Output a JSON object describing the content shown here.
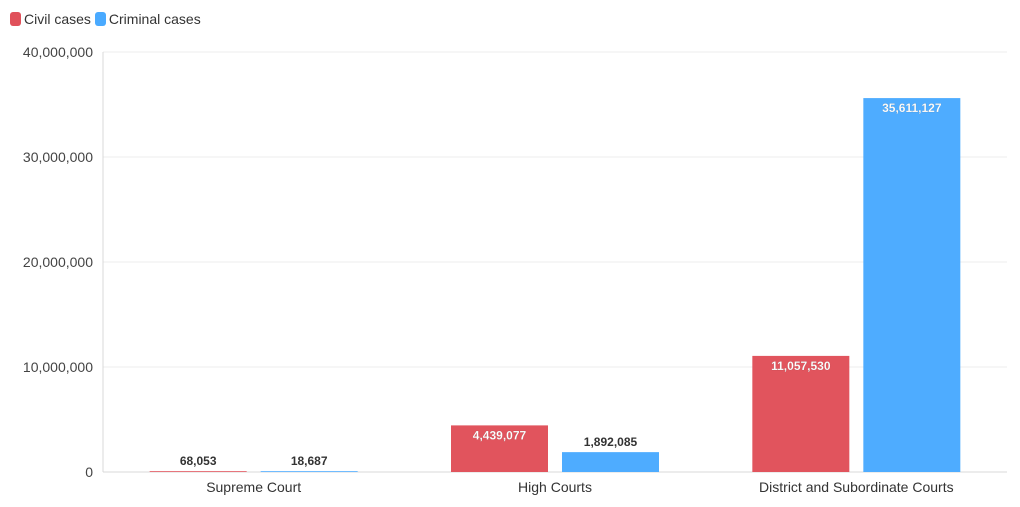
{
  "chart_data": {
    "type": "bar",
    "categories": [
      "Supreme Court",
      "High Courts",
      "District and Subordinate Courts"
    ],
    "series": [
      {
        "name": "Civil cases",
        "color": "#e0515a",
        "values": [
          68053,
          4439077,
          11057530
        ]
      },
      {
        "name": "Criminal cases",
        "color": "#4aaaff",
        "values": [
          18687,
          1892085,
          35611127
        ]
      }
    ],
    "data_labels": [
      [
        "68,053",
        "4,439,077",
        "11,057,530"
      ],
      [
        "18,687",
        "1,892,085",
        "35,611,127"
      ]
    ],
    "yticks": [
      0,
      10000000,
      20000000,
      30000000,
      40000000
    ],
    "ytick_labels": [
      "0",
      "10,000,000",
      "20,000,000",
      "30,000,000",
      "40,000,000"
    ],
    "ylim": [
      0,
      40000000
    ],
    "title": "",
    "xlabel": "",
    "ylabel": "",
    "legend_position": "top-left",
    "grid": true
  }
}
